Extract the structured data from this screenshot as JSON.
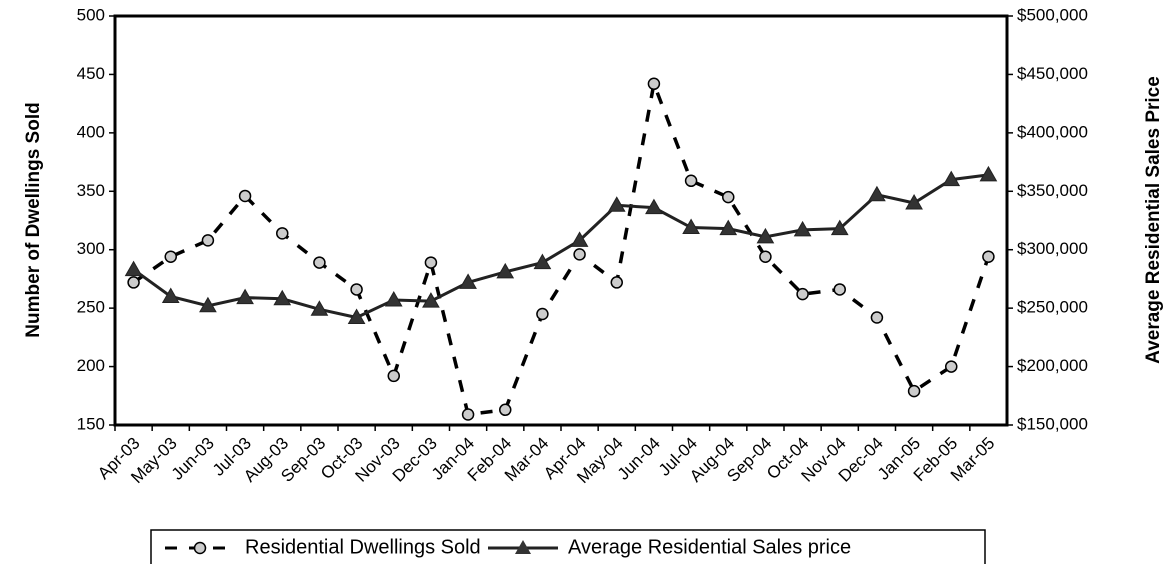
{
  "chart_data": {
    "type": "line",
    "categories": [
      "Apr-03",
      "May-03",
      "Jun-03",
      "Jul-03",
      "Aug-03",
      "Sep-03",
      "Oct-03",
      "Nov-03",
      "Dec-03",
      "Jan-04",
      "Feb-04",
      "Mar-04",
      "Apr-04",
      "May-04",
      "Jun-04",
      "Jul-04",
      "Aug-04",
      "Sep-04",
      "Oct-04",
      "Nov-04",
      "Dec-04",
      "Jan-05",
      "Feb-05",
      "Mar-05"
    ],
    "series": [
      {
        "name": "Residential Dwellings Sold",
        "color": "#000000",
        "axis": "y",
        "values": [
          272,
          294,
          308,
          346,
          314,
          289,
          266,
          192,
          289,
          159,
          163,
          245,
          296,
          272,
          442,
          359,
          345,
          294,
          262,
          266,
          242,
          179,
          200,
          294
        ]
      },
      {
        "name": "Average Residential Sales price",
        "color": "#222222",
        "axis": "y2",
        "values": [
          283000,
          260000,
          252000,
          259000,
          258000,
          249000,
          242000,
          257000,
          256000,
          272000,
          281000,
          289000,
          308000,
          338000,
          336000,
          319000,
          318000,
          311000,
          317000,
          318000,
          347000,
          340000,
          360000,
          364000
        ]
      }
    ],
    "ylabel": "Number of Dwellings Sold",
    "y2label": "Average Residential Sales Price",
    "ylim": [
      150,
      500
    ],
    "yticks": [
      150,
      200,
      250,
      300,
      350,
      400,
      450,
      500
    ],
    "y2lim": [
      150000,
      500000
    ],
    "y2ticks": [
      {
        "value": 150000,
        "label": "$150,000"
      },
      {
        "value": 200000,
        "label": "$200,000"
      },
      {
        "value": 250000,
        "label": "$250,000"
      },
      {
        "value": 300000,
        "label": "$300,000"
      },
      {
        "value": 350000,
        "label": "$350,000"
      },
      {
        "value": 400000,
        "label": "$400,000"
      },
      {
        "value": 450000,
        "label": "$450,000"
      },
      {
        "value": 500000,
        "label": "$500,000"
      }
    ],
    "grid": false,
    "legend": "bottom"
  }
}
